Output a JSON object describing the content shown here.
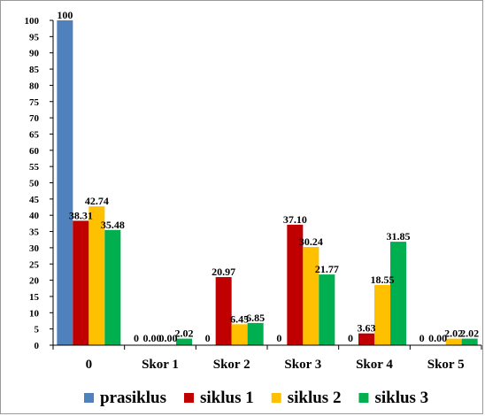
{
  "chart_data": {
    "type": "bar",
    "title": "",
    "xlabel": "",
    "ylabel": "",
    "ylim": [
      0,
      100
    ],
    "yticks": [
      0,
      5,
      10,
      15,
      20,
      25,
      30,
      35,
      40,
      45,
      50,
      55,
      60,
      65,
      70,
      75,
      80,
      85,
      90,
      95,
      100
    ],
    "grid": false,
    "legend_position": "bottom",
    "categories": [
      "0",
      "Skor 1",
      "Skor 2",
      "Skor 3",
      "Skor 4",
      "Skor 5"
    ],
    "series": [
      {
        "name": "prasiklus",
        "color": "#4f81bd",
        "values": [
          100,
          0,
          0,
          0,
          0,
          0
        ],
        "labels": [
          "100",
          "0",
          "0",
          "0",
          "0",
          "0"
        ]
      },
      {
        "name": "siklus 1",
        "color": "#c00000",
        "values": [
          38.31,
          0,
          20.97,
          37.1,
          3.63,
          0
        ],
        "labels": [
          "38.31",
          "0.00",
          "20.97",
          "37.10",
          "3.63",
          "0.00"
        ]
      },
      {
        "name": "siklus 2",
        "color": "#ffc000",
        "values": [
          42.74,
          0,
          6.45,
          30.24,
          18.55,
          2.02
        ],
        "labels": [
          "42.74",
          "0.00",
          "6.45",
          "30.24",
          "18.55",
          "2.02"
        ]
      },
      {
        "name": "siklus 3",
        "color": "#00b050",
        "values": [
          35.48,
          2.02,
          6.85,
          21.77,
          31.85,
          2.02
        ],
        "labels": [
          "35.48",
          "2.02",
          "6.85",
          "21.77",
          "31.85",
          "2.02"
        ]
      }
    ]
  }
}
